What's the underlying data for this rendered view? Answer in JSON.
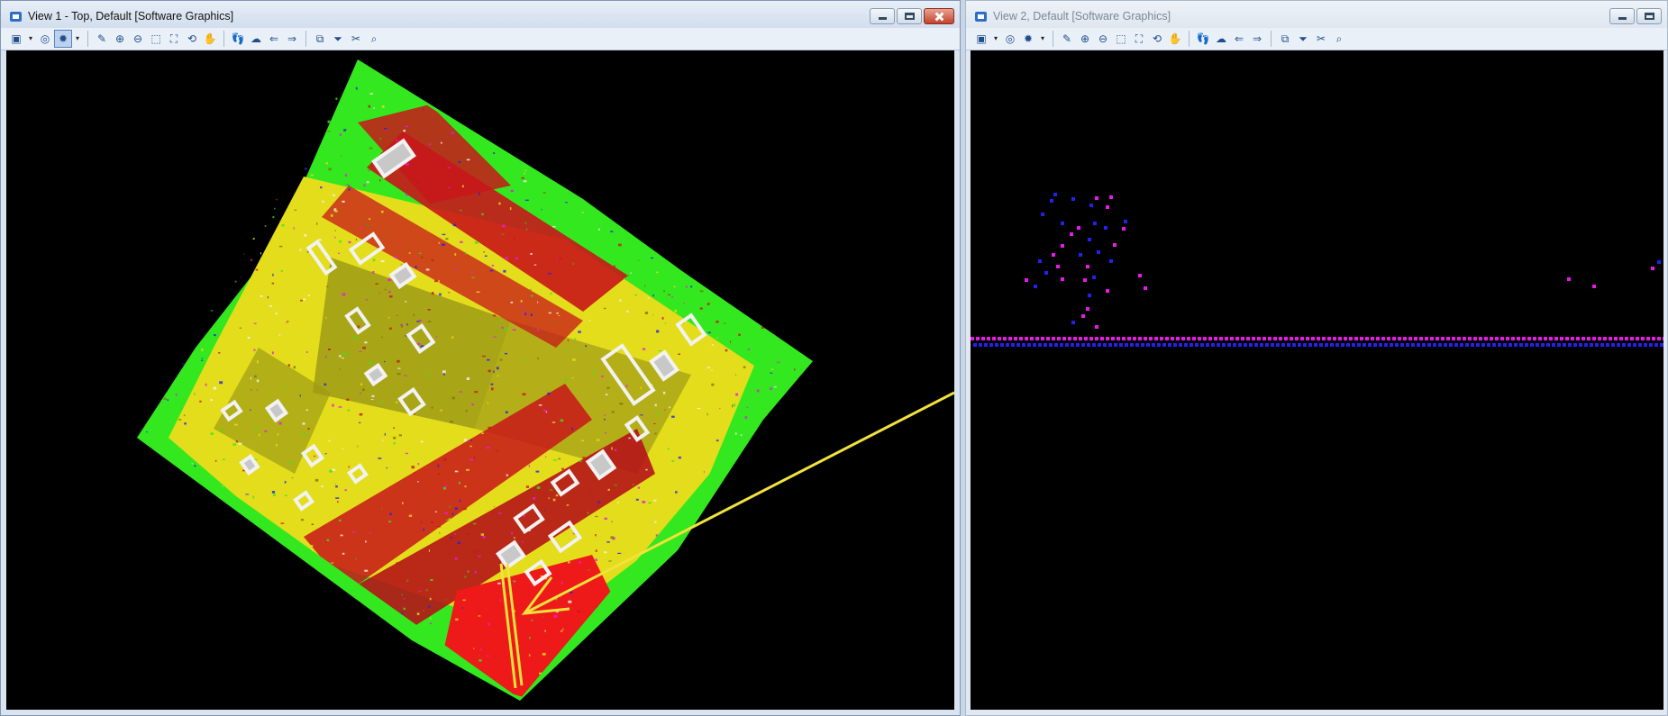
{
  "views": [
    {
      "title": "View 1 - Top, Default [Software Graphics]",
      "active": true,
      "toolbar": [
        {
          "icon": "view-attributes-icon",
          "glyph": "▣"
        },
        {
          "icon": "dropdown-arrow-icon",
          "glyph": "▾"
        },
        {
          "icon": "display-style-icon",
          "glyph": "◎"
        },
        {
          "icon": "lighting-icon",
          "glyph": "✹",
          "selected": true
        },
        {
          "icon": "dropdown-arrow-icon",
          "glyph": "▾"
        },
        {
          "sep": true
        },
        {
          "icon": "update-view-icon",
          "glyph": "✎"
        },
        {
          "icon": "zoom-in-icon",
          "glyph": "⊕"
        },
        {
          "icon": "zoom-out-icon",
          "glyph": "⊖"
        },
        {
          "icon": "window-area-icon",
          "glyph": "⬚"
        },
        {
          "icon": "fit-view-icon",
          "glyph": "⛶"
        },
        {
          "icon": "rotate-view-icon",
          "glyph": "⟲"
        },
        {
          "icon": "pan-view-icon",
          "glyph": "✋"
        },
        {
          "sep": true
        },
        {
          "icon": "walk-icon",
          "glyph": "👣"
        },
        {
          "icon": "fly-icon",
          "glyph": "☁"
        },
        {
          "icon": "previous-view-icon",
          "glyph": "⇐"
        },
        {
          "icon": "next-view-icon",
          "glyph": "⇒"
        },
        {
          "sep": true
        },
        {
          "icon": "copy-view-icon",
          "glyph": "⧉"
        },
        {
          "icon": "clip-volume-icon",
          "glyph": "⏷"
        },
        {
          "icon": "clip-mask-icon",
          "glyph": "✂"
        },
        {
          "icon": "camera-icon",
          "glyph": "⌕"
        }
      ]
    },
    {
      "title": "View 2, Default [Software Graphics]",
      "active": false,
      "toolbar": [
        {
          "icon": "view-attributes-icon",
          "glyph": "▣"
        },
        {
          "icon": "dropdown-arrow-icon",
          "glyph": "▾"
        },
        {
          "icon": "display-style-icon",
          "glyph": "◎"
        },
        {
          "icon": "lighting-icon",
          "glyph": "✹"
        },
        {
          "icon": "dropdown-arrow-icon",
          "glyph": "▾"
        },
        {
          "sep": true
        },
        {
          "icon": "update-view-icon",
          "glyph": "✎"
        },
        {
          "icon": "zoom-in-icon",
          "glyph": "⊕"
        },
        {
          "icon": "zoom-out-icon",
          "glyph": "⊖"
        },
        {
          "icon": "window-area-icon",
          "glyph": "⬚"
        },
        {
          "icon": "fit-view-icon",
          "glyph": "⛶"
        },
        {
          "icon": "rotate-view-icon",
          "glyph": "⟲"
        },
        {
          "icon": "pan-view-icon",
          "glyph": "✋"
        },
        {
          "sep": true
        },
        {
          "icon": "walk-icon",
          "glyph": "👣"
        },
        {
          "icon": "fly-icon",
          "glyph": "☁"
        },
        {
          "icon": "previous-view-icon",
          "glyph": "⇐"
        },
        {
          "icon": "next-view-icon",
          "glyph": "⇒"
        },
        {
          "sep": true
        },
        {
          "icon": "copy-view-icon",
          "glyph": "⧉"
        },
        {
          "icon": "clip-volume-icon",
          "glyph": "⏷"
        },
        {
          "icon": "clip-mask-icon",
          "glyph": "✂"
        },
        {
          "icon": "camera-icon",
          "glyph": "⌕"
        }
      ]
    }
  ],
  "colors": {
    "ground_green": "#33e81f",
    "vegetation_yellow": "#e6e01a",
    "olive": "#9a9a14",
    "road_red": "#c8161a",
    "bright_red": "#ee1a1a",
    "building_white": "#f2f2f2",
    "point_magenta": "#e81ae8",
    "point_blue": "#2222ee",
    "section_line": "#f2e23a"
  }
}
